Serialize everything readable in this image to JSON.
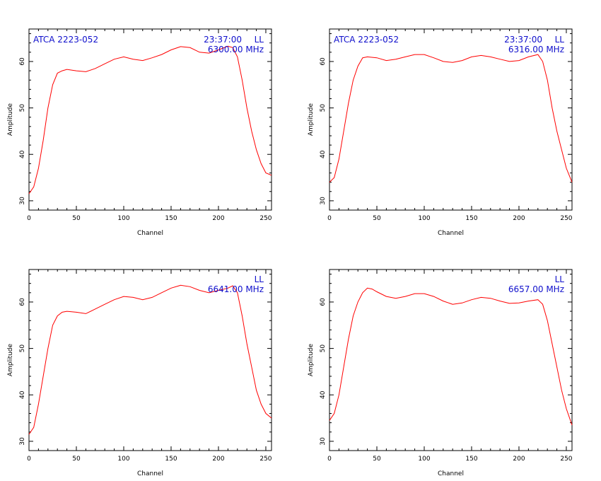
{
  "chart_data": [
    {
      "type": "line",
      "title_left": "ATCA 2223-052",
      "time": "23:37:00",
      "pol": "LL",
      "freq": "6300.00 MHz",
      "xlabel": "Channel",
      "ylabel": "Amplitude",
      "xlim": [
        0,
        256
      ],
      "ylim": [
        28,
        67
      ],
      "xticks": [
        "0",
        "50",
        "100",
        "150",
        "200",
        "250"
      ],
      "yticks": [
        "30",
        "40",
        "50",
        "60"
      ],
      "series": [
        {
          "color": "#ff0000",
          "x": [
            0,
            5,
            10,
            15,
            20,
            25,
            30,
            35,
            40,
            50,
            60,
            70,
            80,
            90,
            100,
            110,
            120,
            130,
            140,
            150,
            160,
            170,
            180,
            190,
            200,
            210,
            215,
            220,
            225,
            230,
            235,
            240,
            245,
            250,
            256
          ],
          "y": [
            31.5,
            33,
            37,
            43,
            50,
            55,
            57.5,
            58,
            58.3,
            58,
            57.8,
            58.5,
            59.5,
            60.5,
            61,
            60.5,
            60.2,
            60.8,
            61.5,
            62.5,
            63.2,
            63,
            62,
            61.8,
            62.5,
            63.3,
            63,
            61,
            56,
            50,
            45,
            41,
            38,
            36,
            35.5
          ]
        }
      ]
    },
    {
      "type": "line",
      "title_left": "ATCA 2223-052",
      "time": "23:37:00",
      "pol": "LL",
      "freq": "6316.00 MHz",
      "xlabel": "Channel",
      "ylabel": "Amplitude",
      "xlim": [
        0,
        256
      ],
      "ylim": [
        28,
        67
      ],
      "xticks": [
        "0",
        "50",
        "100",
        "150",
        "200",
        "250"
      ],
      "yticks": [
        "30",
        "40",
        "50",
        "60"
      ],
      "series": [
        {
          "color": "#ff0000",
          "x": [
            0,
            5,
            10,
            15,
            20,
            25,
            30,
            35,
            40,
            50,
            60,
            70,
            80,
            90,
            100,
            110,
            120,
            130,
            140,
            150,
            160,
            170,
            180,
            190,
            200,
            210,
            220,
            225,
            230,
            235,
            240,
            245,
            250,
            256
          ],
          "y": [
            34,
            35,
            39,
            45,
            51,
            56,
            59,
            60.8,
            61,
            60.8,
            60.2,
            60.5,
            61,
            61.5,
            61.5,
            60.8,
            60,
            59.8,
            60.2,
            61,
            61.3,
            61,
            60.5,
            60,
            60.2,
            61,
            61.5,
            60,
            56,
            50,
            45,
            41,
            37,
            34
          ]
        }
      ]
    },
    {
      "type": "line",
      "title_left": "",
      "time": "",
      "pol": "LL",
      "freq": "6641.00 MHz",
      "xlabel": "Channel",
      "ylabel": "Amplitude",
      "xlim": [
        0,
        256
      ],
      "ylim": [
        28,
        67
      ],
      "xticks": [
        "0",
        "50",
        "100",
        "150",
        "200",
        "250"
      ],
      "yticks": [
        "30",
        "40",
        "50",
        "60"
      ],
      "series": [
        {
          "color": "#ff0000",
          "x": [
            0,
            5,
            10,
            15,
            20,
            25,
            30,
            35,
            40,
            50,
            60,
            70,
            80,
            90,
            100,
            110,
            120,
            130,
            140,
            150,
            160,
            170,
            180,
            190,
            200,
            210,
            215,
            220,
            225,
            230,
            235,
            240,
            245,
            250,
            256
          ],
          "y": [
            31.5,
            33,
            38,
            44,
            50,
            55,
            57,
            57.8,
            58,
            57.8,
            57.5,
            58.5,
            59.5,
            60.5,
            61.2,
            61,
            60.5,
            61,
            62,
            63,
            63.6,
            63.3,
            62.5,
            62,
            62.5,
            63,
            63.5,
            62,
            57,
            51,
            46,
            41,
            38,
            36,
            35
          ]
        }
      ]
    },
    {
      "type": "line",
      "title_left": "",
      "time": "",
      "pol": "LL",
      "freq": "6657.00 MHz",
      "xlabel": "Channel",
      "ylabel": "Amplitude",
      "xlim": [
        0,
        256
      ],
      "ylim": [
        28,
        67
      ],
      "xticks": [
        "0",
        "50",
        "100",
        "150",
        "200",
        "250"
      ],
      "yticks": [
        "30",
        "40",
        "50",
        "60"
      ],
      "series": [
        {
          "color": "#ff0000",
          "x": [
            0,
            5,
            10,
            15,
            20,
            25,
            30,
            35,
            40,
            45,
            50,
            60,
            70,
            80,
            90,
            100,
            110,
            120,
            130,
            140,
            150,
            160,
            170,
            180,
            190,
            200,
            210,
            220,
            225,
            230,
            235,
            240,
            245,
            250,
            256
          ],
          "y": [
            34.5,
            36,
            40,
            46,
            52,
            57,
            60,
            62,
            63,
            62.8,
            62.2,
            61.2,
            60.8,
            61.2,
            61.8,
            61.8,
            61.2,
            60.2,
            59.5,
            59.8,
            60.5,
            61,
            60.8,
            60.2,
            59.7,
            59.8,
            60.2,
            60.5,
            59.5,
            56,
            51,
            46,
            41,
            37,
            33.5
          ]
        }
      ]
    }
  ]
}
